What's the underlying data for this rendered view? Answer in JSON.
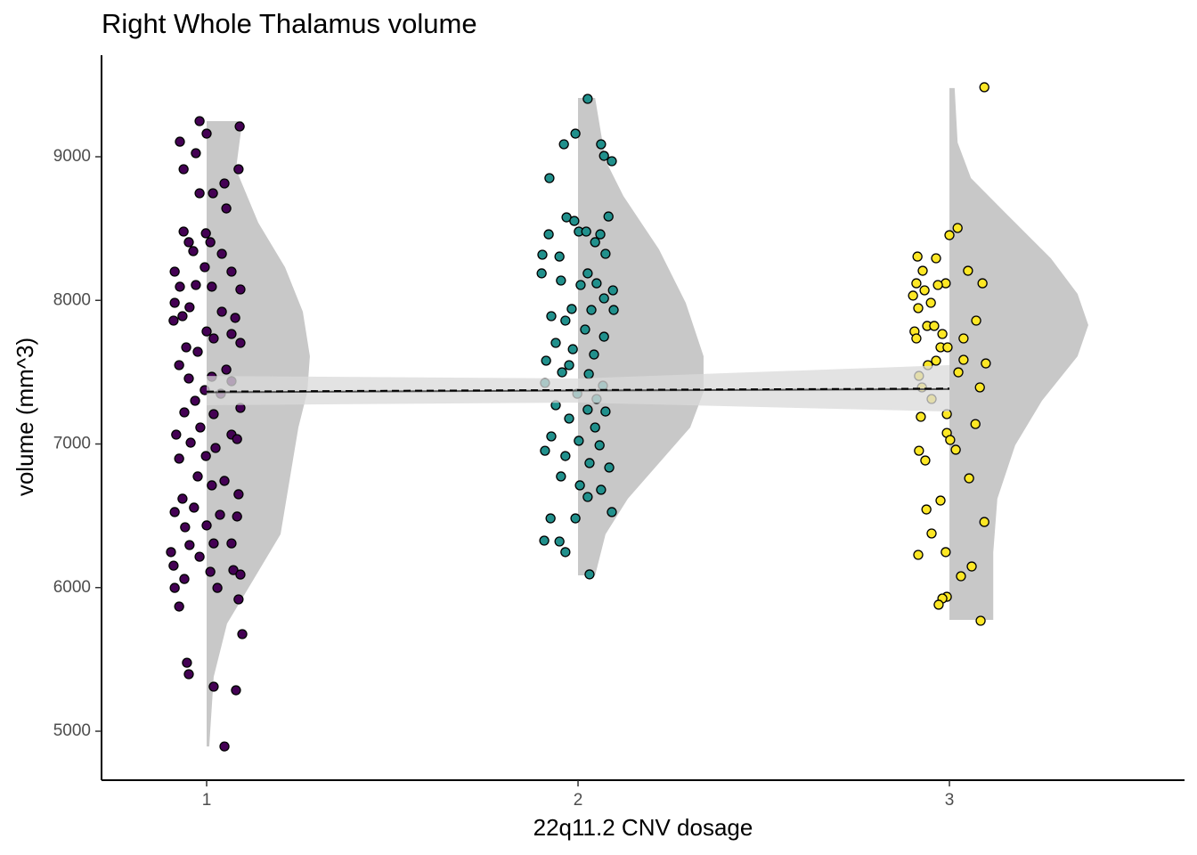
{
  "chart_data": {
    "type": "raincloud",
    "title": "Right Whole Thalamus volume",
    "x_label": "22q11.2 CNV dosage",
    "y_label": "volume (mm^3)",
    "xlim": [
      0.717,
      3.633
    ],
    "xticks": [
      1,
      2,
      3
    ],
    "ylim": [
      4659,
      9707
    ],
    "yticks": [
      5000,
      6000,
      7000,
      8000,
      9000
    ],
    "violin_color": "#c8c8c8",
    "violins": [
      {
        "center": 1,
        "y": [
          9248,
          8913,
          8541,
          8231,
          7921,
          7611,
          7363,
          7115,
          6743,
          6371,
          6060,
          5750,
          5378,
          4894
        ],
        "width": [
          0.096,
          0.079,
          0.139,
          0.211,
          0.259,
          0.278,
          0.271,
          0.247,
          0.223,
          0.199,
          0.127,
          0.055,
          0.019,
          0.007
        ]
      },
      {
        "center": 2,
        "y": [
          9409,
          8975,
          8727,
          8355,
          7983,
          7611,
          7363,
          7115,
          6867,
          6619,
          6371,
          6085
        ],
        "width": [
          0.046,
          0.074,
          0.122,
          0.218,
          0.29,
          0.338,
          0.338,
          0.302,
          0.218,
          0.134,
          0.074,
          0.046
        ]
      },
      {
        "center": 3,
        "y": [
          9478,
          9099,
          8851,
          8603,
          8293,
          8045,
          7828,
          7611,
          7301,
          6991,
          6619,
          6246,
          5775
        ],
        "width": [
          0.014,
          0.022,
          0.058,
          0.153,
          0.273,
          0.345,
          0.374,
          0.345,
          0.249,
          0.177,
          0.129,
          0.118,
          0.118
        ]
      }
    ],
    "series": [
      {
        "color": "#440154",
        "x": [
          0.981,
          1.0,
          0.928,
          1.089,
          0.971,
          0.938,
          1.086,
          1.048,
          1.017,
          0.981,
          1.053,
          0.938,
          0.998,
          0.952,
          1.01,
          0.964,
          1.041,
          0.914,
          0.995,
          1.067,
          0.971,
          0.928,
          1.091,
          1.014,
          0.914,
          0.954,
          1.041,
          0.935,
          1.077,
          1.0,
          0.911,
          1.067,
          1.019,
          0.945,
          1.091,
          0.976,
          0.926,
          1.053,
          1.014,
          0.952,
          0.995,
          1.067,
          1.038,
          0.969,
          0.94,
          1.019,
          1.091,
          0.983,
          0.918,
          1.067,
          0.957,
          1.024,
          1.082,
          0.998,
          0.926,
          0.976,
          1.048,
          0.935,
          1.014,
          1.086,
          0.966,
          0.914,
          1.036,
          1.0,
          0.942,
          1.082,
          0.954,
          1.019,
          1.067,
          0.904,
          0.981,
          1.072,
          0.911,
          1.01,
          0.94,
          1.091,
          0.914,
          1.029,
          0.926,
          1.086,
          0.947,
          0.952,
          1.019,
          1.079,
          1.096,
          1.048
        ],
        "values": [
          9248,
          9161,
          9105,
          9211,
          9025,
          8913,
          8913,
          8814,
          8746,
          8746,
          8640,
          8479,
          8467,
          8405,
          8405,
          8343,
          8324,
          8200,
          8231,
          8200,
          8107,
          8095,
          8076,
          8095,
          7983,
          7952,
          7921,
          7890,
          7878,
          7784,
          7859,
          7766,
          7735,
          7673,
          7704,
          7642,
          7549,
          7518,
          7468,
          7456,
          7375,
          7437,
          7350,
          7301,
          7220,
          7208,
          7251,
          7115,
          7065,
          7065,
          7009,
          6972,
          7034,
          6916,
          6898,
          6774,
          6743,
          6619,
          6712,
          6650,
          6557,
          6526,
          6507,
          6433,
          6420,
          6495,
          6296,
          6308,
          6308,
          6247,
          6215,
          6122,
          6153,
          6110,
          6060,
          6091,
          5998,
          5998,
          5868,
          5918,
          5477,
          5397,
          5310,
          5285,
          5676,
          4894
        ]
      },
      {
        "color": "#21908c",
        "x": [
          2.026,
          1.993,
          1.962,
          2.062,
          2.07,
          2.091,
          1.923,
          2.082,
          1.969,
          1.99,
          2.06,
          1.921,
          2.002,
          2.022,
          2.046,
          1.904,
          1.95,
          2.074,
          2.026,
          1.902,
          1.954,
          2.05,
          2.007,
          2.094,
          2.07,
          1.983,
          2.036,
          1.928,
          2.096,
          1.966,
          2.019,
          2.07,
          1.94,
          1.986,
          2.043,
          1.914,
          1.976,
          1.957,
          2.029,
          2.067,
          1.911,
          1.998,
          2.05,
          1.94,
          2.026,
          2.074,
          1.976,
          2.046,
          1.928,
          2.002,
          2.058,
          1.911,
          1.966,
          2.031,
          2.084,
          1.954,
          2.005,
          2.062,
          2.026,
          1.926,
          1.993,
          2.091,
          1.909,
          1.95,
          1.966,
          2.031
        ],
        "values": [
          9403,
          9161,
          9087,
          9087,
          9006,
          8969,
          8851,
          8584,
          8578,
          8553,
          8460,
          8460,
          8479,
          8479,
          8405,
          8318,
          8305,
          8324,
          8188,
          8188,
          8138,
          8119,
          8107,
          8070,
          8014,
          7940,
          7933,
          7890,
          7933,
          7859,
          7797,
          7747,
          7704,
          7660,
          7623,
          7580,
          7549,
          7499,
          7487,
          7406,
          7425,
          7350,
          7313,
          7270,
          7239,
          7226,
          7177,
          7115,
          7053,
          7022,
          6991,
          6953,
          6916,
          6867,
          6836,
          6774,
          6712,
          6681,
          6631,
          6482,
          6482,
          6526,
          6327,
          6321,
          6247,
          6092
        ]
      },
      {
        "color": "#fde725",
        "x": [
          3.094,
          3.022,
          3.0,
          2.914,
          2.964,
          3.05,
          2.928,
          3.089,
          2.911,
          2.99,
          2.969,
          2.933,
          2.902,
          2.95,
          2.916,
          3.072,
          2.94,
          2.959,
          2.906,
          2.981,
          2.911,
          3.038,
          2.976,
          2.995,
          2.964,
          3.038,
          2.942,
          3.098,
          2.918,
          3.024,
          3.082,
          2.926,
          2.952,
          2.993,
          2.923,
          3.07,
          2.993,
          3.002,
          3.017,
          2.918,
          2.935,
          3.053,
          2.976,
          2.938,
          3.094,
          2.952,
          2.99,
          2.916,
          3.06,
          3.031,
          2.993,
          2.981,
          2.971,
          3.084
        ],
        "values": [
          9484,
          8504,
          8454,
          8305,
          8293,
          8206,
          8206,
          8119,
          8119,
          8119,
          8107,
          8070,
          8033,
          7983,
          7946,
          7859,
          7822,
          7822,
          7784,
          7766,
          7735,
          7735,
          7673,
          7673,
          7580,
          7586,
          7549,
          7561,
          7474,
          7499,
          7394,
          7394,
          7313,
          7208,
          7189,
          7139,
          7077,
          7028,
          6960,
          6953,
          6885,
          6761,
          6606,
          6544,
          6457,
          6377,
          6247,
          6228,
          6147,
          6079,
          5936,
          5924,
          5881,
          5769
        ]
      }
    ],
    "fit": {
      "x": [
        1,
        2,
        3
      ],
      "values": [
        7360,
        7372,
        7382
      ],
      "lower": [
        7270,
        7288,
        7226
      ],
      "upper": [
        7474,
        7456,
        7549
      ],
      "color": "#555555",
      "band_color": "#d9d9d9"
    },
    "mean_line": {
      "x": [
        1,
        2,
        3
      ],
      "values": [
        7365,
        7376,
        7386
      ],
      "color": "#000000"
    }
  }
}
